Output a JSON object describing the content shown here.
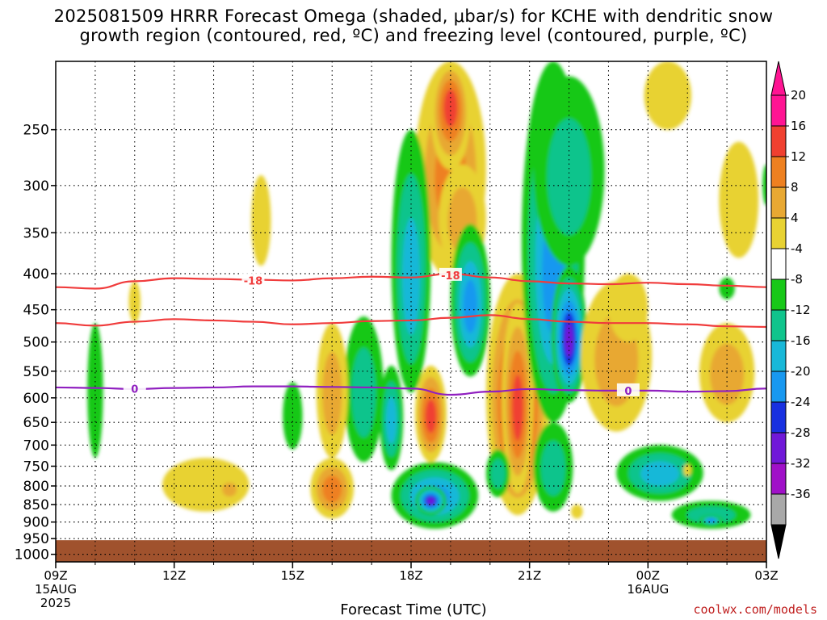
{
  "header": {
    "title_line1": "2025081509 HRRR Forecast Omega (shaded, μbar/s) for KCHE with dendritic snow",
    "title_line2": "growth region (contoured, red, ºC) and freezing level (contoured, purple, ºC)"
  },
  "footer": {
    "credit": "coolwx.com/models"
  },
  "chart_data": {
    "type": "heatmap",
    "xlabel": "Forecast Time (UTC)",
    "ylabel": "",
    "x_ticks": [
      {
        "hour": 0,
        "label": "09Z",
        "sub1": "15AUG",
        "sub2": "2025"
      },
      {
        "hour": 3,
        "label": "12Z"
      },
      {
        "hour": 6,
        "label": "15Z"
      },
      {
        "hour": 9,
        "label": "18Z"
      },
      {
        "hour": 12,
        "label": "21Z"
      },
      {
        "hour": 15,
        "label": "00Z",
        "sub1": "16AUG"
      },
      {
        "hour": 18,
        "label": "03Z"
      }
    ],
    "xlim": [
      0,
      18
    ],
    "y_ticks": [
      250,
      300,
      350,
      400,
      450,
      500,
      550,
      600,
      650,
      700,
      750,
      800,
      850,
      900,
      950,
      1000
    ],
    "ylim": [
      200,
      1025
    ],
    "y_scale": "log (pressure)",
    "grid": true,
    "ground_pressure": 955,
    "colorbar": {
      "labels": [
        "20",
        "16",
        "12",
        "8",
        "4",
        "-4",
        "-8",
        "-12",
        "-16",
        "-20",
        "-24",
        "-28",
        "-32",
        "-36"
      ],
      "bins": [
        {
          "from": 20,
          "to": 24,
          "color": "#ff1493"
        },
        {
          "from": 16,
          "to": 20,
          "color": "#f04030"
        },
        {
          "from": 12,
          "to": 16,
          "color": "#ee8020"
        },
        {
          "from": 8,
          "to": 12,
          "color": "#e8a832"
        },
        {
          "from": 4,
          "to": 8,
          "color": "#e8d232"
        },
        {
          "from": -4,
          "to": 4,
          "color": "#ffffff"
        },
        {
          "from": -8,
          "to": -4,
          "color": "#18c818"
        },
        {
          "from": -12,
          "to": -8,
          "color": "#10c48c"
        },
        {
          "from": -16,
          "to": -12,
          "color": "#18b8d8"
        },
        {
          "from": -20,
          "to": -16,
          "color": "#1898f0"
        },
        {
          "from": -24,
          "to": -20,
          "color": "#1830e0"
        },
        {
          "from": -28,
          "to": -24,
          "color": "#7018d8"
        },
        {
          "from": -32,
          "to": -28,
          "color": "#a010c8"
        },
        {
          "from": -36,
          "to": -32,
          "color": "#a8a8a8"
        }
      ]
    },
    "contours": [
      {
        "label": "-18",
        "color": "#f03c3c",
        "levels": "upper",
        "points": [
          [
            0,
            418
          ],
          [
            1,
            420
          ],
          [
            2,
            410
          ],
          [
            3,
            406
          ],
          [
            4,
            407
          ],
          [
            5,
            408
          ],
          [
            6,
            409
          ],
          [
            7,
            406
          ],
          [
            8,
            404
          ],
          [
            9,
            405
          ],
          [
            10,
            400
          ],
          [
            11,
            405
          ],
          [
            12,
            410
          ],
          [
            13,
            413
          ],
          [
            14,
            414
          ],
          [
            15,
            412
          ],
          [
            16,
            414
          ],
          [
            17,
            416
          ],
          [
            18,
            418
          ]
        ]
      },
      {
        "label": "",
        "color": "#f03c3c",
        "levels": "lower",
        "points": [
          [
            0,
            470
          ],
          [
            1,
            474
          ],
          [
            2,
            468
          ],
          [
            3,
            464
          ],
          [
            4,
            466
          ],
          [
            5,
            468
          ],
          [
            6,
            472
          ],
          [
            7,
            470
          ],
          [
            8,
            467
          ],
          [
            9,
            466
          ],
          [
            10,
            462
          ],
          [
            11,
            458
          ],
          [
            12,
            464
          ],
          [
            13,
            468
          ],
          [
            14,
            470
          ],
          [
            15,
            470
          ],
          [
            16,
            472
          ],
          [
            17,
            475
          ],
          [
            18,
            476
          ]
        ]
      },
      {
        "label": "0",
        "color": "#9020c0",
        "levels": "freezing",
        "points": [
          [
            0,
            580
          ],
          [
            1,
            581
          ],
          [
            2,
            583
          ],
          [
            3,
            581
          ],
          [
            4,
            580
          ],
          [
            5,
            578
          ],
          [
            6,
            578
          ],
          [
            7,
            579
          ],
          [
            8,
            580
          ],
          [
            9,
            582
          ],
          [
            10,
            594
          ],
          [
            11,
            588
          ],
          [
            12,
            583
          ],
          [
            13,
            585
          ],
          [
            14,
            586
          ],
          [
            15,
            586
          ],
          [
            16,
            588
          ],
          [
            17,
            587
          ],
          [
            18,
            582
          ]
        ]
      }
    ],
    "contour_label_positions": [
      {
        "series": 0,
        "label": "-18",
        "x": 5.0,
        "y": 409
      },
      {
        "series": 0,
        "label": "-18",
        "x": 10.0,
        "y": 402
      },
      {
        "series": 2,
        "label": "0",
        "x": 2.0,
        "y": 582
      },
      {
        "series": 2,
        "label": "0",
        "x": 14.5,
        "y": 586
      }
    ],
    "omega_blobs": [
      {
        "x": 10.0,
        "y": 300,
        "rx": 0.9,
        "ry": 105,
        "v": 12
      },
      {
        "x": 10.0,
        "y": 230,
        "rx": 0.5,
        "ry": 55,
        "v": 19
      },
      {
        "x": 10.3,
        "y": 340,
        "rx": 0.6,
        "ry": 60,
        "v": 8
      },
      {
        "x": 11.7,
        "y": 640,
        "rx": 0.8,
        "ry": 240,
        "v": 25
      },
      {
        "x": 11.7,
        "y": 630,
        "rx": 0.4,
        "ry": 190,
        "v": 18
      },
      {
        "x": 12.6,
        "y": 420,
        "rx": 0.8,
        "ry": 230,
        "v": -16
      },
      {
        "x": 13.0,
        "y": 300,
        "rx": 0.9,
        "ry": 90,
        "v": -10
      },
      {
        "x": 13.0,
        "y": 500,
        "rx": 0.45,
        "ry": 110,
        "v": -24
      },
      {
        "x": 9.0,
        "y": 420,
        "rx": 0.5,
        "ry": 170,
        "v": -14
      },
      {
        "x": 10.5,
        "y": 450,
        "rx": 0.5,
        "ry": 110,
        "v": -18
      },
      {
        "x": 8.5,
        "y": 650,
        "rx": 0.3,
        "ry": 110,
        "v": -14
      },
      {
        "x": 7.8,
        "y": 600,
        "rx": 0.5,
        "ry": 140,
        "v": -10
      },
      {
        "x": 9.5,
        "y": 640,
        "rx": 0.4,
        "ry": 100,
        "v": 18
      },
      {
        "x": 9.6,
        "y": 830,
        "rx": 1.1,
        "ry": 90,
        "v": -18
      },
      {
        "x": 9.5,
        "y": 840,
        "rx": 0.4,
        "ry": 40,
        "v": -24
      },
      {
        "x": 11.2,
        "y": 770,
        "rx": 0.3,
        "ry": 60,
        "v": -10
      },
      {
        "x": 12.6,
        "y": 760,
        "rx": 0.5,
        "ry": 110,
        "v": -9
      },
      {
        "x": 15.3,
        "y": 770,
        "rx": 1.1,
        "ry": 70,
        "v": -12
      },
      {
        "x": 16.6,
        "y": 880,
        "rx": 1.0,
        "ry": 40,
        "v": -10
      },
      {
        "x": 16.6,
        "y": 895,
        "rx": 0.3,
        "ry": 15,
        "v": -18
      },
      {
        "x": 14.2,
        "y": 540,
        "rx": 0.9,
        "ry": 130,
        "v": 10
      },
      {
        "x": 14.5,
        "y": 450,
        "rx": 0.5,
        "ry": 50,
        "v": 6
      },
      {
        "x": 17.0,
        "y": 560,
        "rx": 0.7,
        "ry": 90,
        "v": 8
      },
      {
        "x": 17.3,
        "y": 320,
        "rx": 0.5,
        "ry": 60,
        "v": 6
      },
      {
        "x": 15.5,
        "y": 220,
        "rx": 0.6,
        "ry": 30,
        "v": 6
      },
      {
        "x": 7.0,
        "y": 600,
        "rx": 0.4,
        "ry": 130,
        "v": 8
      },
      {
        "x": 7.0,
        "y": 810,
        "rx": 0.55,
        "ry": 80,
        "v": 14
      },
      {
        "x": 3.8,
        "y": 800,
        "rx": 1.1,
        "ry": 70,
        "v": 6
      },
      {
        "x": 4.4,
        "y": 810,
        "rx": 0.3,
        "ry": 30,
        "v": 10
      },
      {
        "x": 5.2,
        "y": 340,
        "rx": 0.25,
        "ry": 50,
        "v": 6
      },
      {
        "x": 1.0,
        "y": 600,
        "rx": 0.2,
        "ry": 130,
        "v": -6
      },
      {
        "x": 6.0,
        "y": 640,
        "rx": 0.25,
        "ry": 70,
        "v": -6
      },
      {
        "x": 2.0,
        "y": 440,
        "rx": 0.15,
        "ry": 30,
        "v": 6
      },
      {
        "x": 17.0,
        "y": 420,
        "rx": 0.2,
        "ry": 15,
        "v": -6
      },
      {
        "x": 13.2,
        "y": 870,
        "rx": 0.15,
        "ry": 20,
        "v": 6
      },
      {
        "x": 16.0,
        "y": 760,
        "rx": 0.1,
        "ry": 15,
        "v": 6
      },
      {
        "x": 18.0,
        "y": 300,
        "rx": 0.1,
        "ry": 20,
        "v": -6
      }
    ]
  }
}
